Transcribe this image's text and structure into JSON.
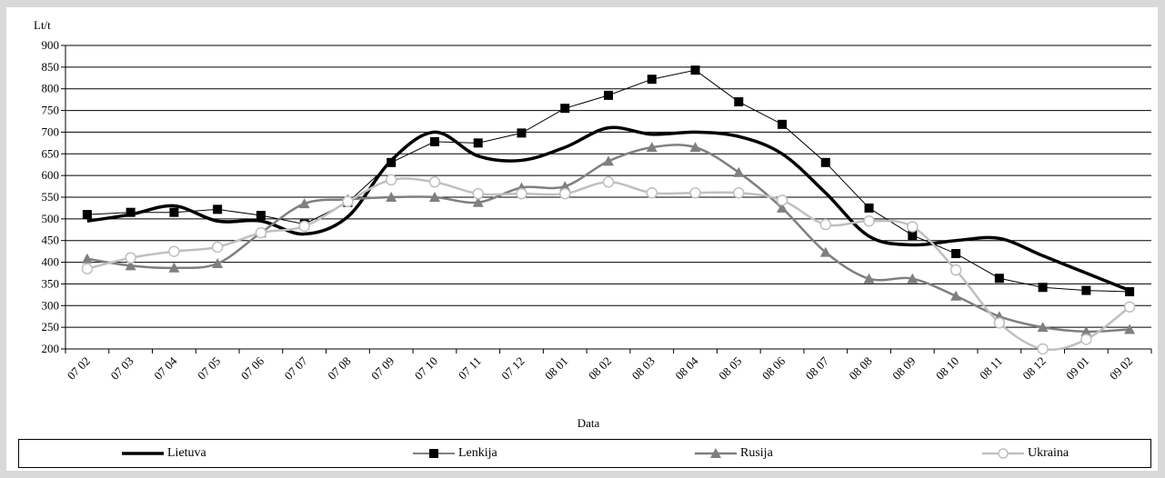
{
  "chart_data": {
    "type": "line",
    "ylabel": "Lt/t",
    "xlabel": "Data",
    "ylim": [
      200,
      900
    ],
    "yticks": [
      200,
      250,
      300,
      350,
      400,
      450,
      500,
      550,
      600,
      650,
      700,
      750,
      800,
      850,
      900
    ],
    "grid": "horizontal",
    "legend_position": "bottom",
    "categories": [
      "07 02",
      "07 03",
      "07 04",
      "07 05",
      "07 06",
      "07 07",
      "07 08",
      "07 09",
      "07 10",
      "07 11",
      "07 12",
      "08 01",
      "08 02",
      "08 03",
      "08 04",
      "08 05",
      "08 06",
      "08 07",
      "08 08",
      "08 09",
      "08 10",
      "08 11",
      "08 12",
      "09 01",
      "09 02"
    ],
    "series": [
      {
        "name": "Lietuva",
        "color": "#000000",
        "marker": "none",
        "values": [
          495,
          510,
          530,
          495,
          495,
          465,
          505,
          635,
          700,
          645,
          635,
          665,
          710,
          695,
          700,
          690,
          650,
          560,
          460,
          440,
          450,
          455,
          415,
          375,
          335
        ]
      },
      {
        "name": "Lenkija",
        "color": "#000000",
        "marker": "square",
        "values": [
          510,
          515,
          515,
          522,
          508,
          488,
          538,
          630,
          678,
          675,
          698,
          755,
          785,
          822,
          843,
          770,
          718,
          630,
          525,
          462,
          420,
          363,
          342,
          335,
          332
        ]
      },
      {
        "name": "Rusija",
        "color": "#7f7f7f",
        "marker": "triangle",
        "values": [
          408,
          392,
          387,
          397,
          468,
          535,
          545,
          550,
          550,
          538,
          572,
          575,
          633,
          665,
          665,
          607,
          525,
          423,
          362,
          362,
          322,
          275,
          250,
          240,
          245
        ]
      },
      {
        "name": "Ukraina",
        "color": "#bfbfbf",
        "marker": "circle",
        "values": [
          385,
          410,
          425,
          435,
          468,
          483,
          540,
          590,
          585,
          558,
          558,
          558,
          585,
          560,
          560,
          560,
          543,
          487,
          495,
          482,
          382,
          260,
          200,
          222,
          297
        ]
      }
    ]
  }
}
